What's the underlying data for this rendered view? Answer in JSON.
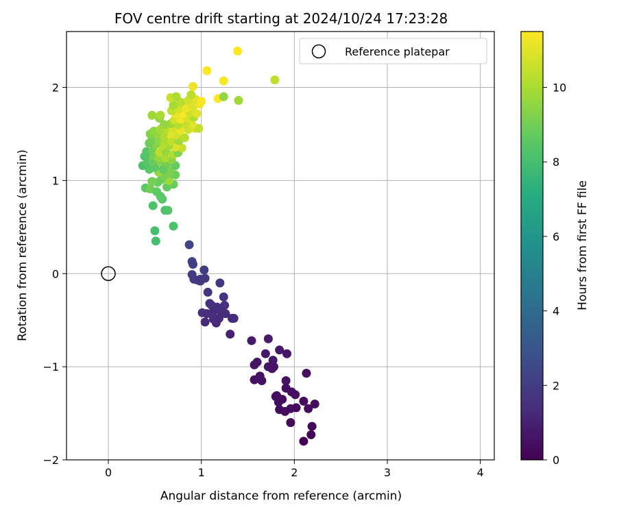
{
  "chart_data": {
    "type": "scatter",
    "title": "FOV centre drift starting at 2024/10/24 17:23:28",
    "xlabel": "Angular distance from reference (arcmin)",
    "ylabel": "Rotation from reference (arcmin)",
    "xlim": [
      -0.45,
      4.15
    ],
    "ylim": [
      -2.0,
      2.6
    ],
    "xticks": [
      0,
      1,
      2,
      3,
      4
    ],
    "yticks": [
      -2,
      -1,
      0,
      1,
      2
    ],
    "grid": true,
    "legend": {
      "position": "top-right",
      "entries": [
        "Reference platepar"
      ]
    },
    "reference_point": {
      "x": 0,
      "y": 0,
      "label": "Reference platepar"
    },
    "colorbar": {
      "label": "Hours from first FF file",
      "range": [
        0,
        11.5
      ],
      "ticks": [
        0,
        2,
        4,
        6,
        8,
        10
      ],
      "colormap": "viridis"
    },
    "points": [
      {
        "x": 2.13,
        "y": -1.07,
        "t": 0.4
      },
      {
        "x": 2.22,
        "y": -1.4,
        "t": 0.3
      },
      {
        "x": 2.19,
        "y": -1.64,
        "t": 0.2
      },
      {
        "x": 2.18,
        "y": -1.73,
        "t": 0.1
      },
      {
        "x": 2.1,
        "y": -1.8,
        "t": 0.05
      },
      {
        "x": 2.15,
        "y": -1.45,
        "t": 0.3
      },
      {
        "x": 2.1,
        "y": -1.37,
        "t": 0.35
      },
      {
        "x": 2.01,
        "y": -1.3,
        "t": 0.4
      },
      {
        "x": 1.97,
        "y": -1.27,
        "t": 0.45
      },
      {
        "x": 1.96,
        "y": -1.45,
        "t": 0.3
      },
      {
        "x": 1.96,
        "y": -1.6,
        "t": 0.2
      },
      {
        "x": 2.02,
        "y": -1.44,
        "t": 0.25
      },
      {
        "x": 1.91,
        "y": -1.15,
        "t": 0.5
      },
      {
        "x": 1.91,
        "y": -1.23,
        "t": 0.45
      },
      {
        "x": 1.87,
        "y": -1.35,
        "t": 0.4
      },
      {
        "x": 1.84,
        "y": -1.46,
        "t": 0.35
      },
      {
        "x": 1.9,
        "y": -1.48,
        "t": 0.3
      },
      {
        "x": 1.83,
        "y": -1.38,
        "t": 0.4
      },
      {
        "x": 1.8,
        "y": -1.32,
        "t": 0.45
      },
      {
        "x": 1.92,
        "y": -0.86,
        "t": 0.7
      },
      {
        "x": 1.84,
        "y": -0.82,
        "t": 0.75
      },
      {
        "x": 1.81,
        "y": -1.31,
        "t": 0.4
      },
      {
        "x": 1.78,
        "y": -1.0,
        "t": 0.6
      },
      {
        "x": 1.77,
        "y": -0.93,
        "t": 0.65
      },
      {
        "x": 1.76,
        "y": -1.02,
        "t": 0.55
      },
      {
        "x": 1.72,
        "y": -1.0,
        "t": 0.6
      },
      {
        "x": 1.72,
        "y": -0.7,
        "t": 0.8
      },
      {
        "x": 1.69,
        "y": -0.86,
        "t": 0.7
      },
      {
        "x": 1.65,
        "y": -1.15,
        "t": 0.5
      },
      {
        "x": 1.63,
        "y": -1.1,
        "t": 0.55
      },
      {
        "x": 1.6,
        "y": -0.95,
        "t": 0.65
      },
      {
        "x": 1.57,
        "y": -1.14,
        "t": 0.5
      },
      {
        "x": 1.57,
        "y": -0.98,
        "t": 0.6
      },
      {
        "x": 1.54,
        "y": -0.72,
        "t": 0.8
      },
      {
        "x": 1.33,
        "y": -0.48,
        "t": 1.3
      },
      {
        "x": 1.31,
        "y": -0.65,
        "t": 1.0
      },
      {
        "x": 1.35,
        "y": -0.48,
        "t": 1.35
      },
      {
        "x": 1.26,
        "y": -0.43,
        "t": 1.4
      },
      {
        "x": 1.25,
        "y": -0.34,
        "t": 1.5
      },
      {
        "x": 1.24,
        "y": -0.25,
        "t": 1.6
      },
      {
        "x": 1.21,
        "y": -0.41,
        "t": 1.45
      },
      {
        "x": 1.19,
        "y": -0.48,
        "t": 1.35
      },
      {
        "x": 1.16,
        "y": -0.53,
        "t": 1.25
      },
      {
        "x": 1.17,
        "y": -0.36,
        "t": 1.5
      },
      {
        "x": 1.13,
        "y": -0.49,
        "t": 1.35
      },
      {
        "x": 1.12,
        "y": -0.42,
        "t": 1.4
      },
      {
        "x": 1.09,
        "y": -0.32,
        "t": 1.55
      },
      {
        "x": 1.11,
        "y": -0.34,
        "t": 1.5
      },
      {
        "x": 1.07,
        "y": -0.2,
        "t": 1.7
      },
      {
        "x": 1.06,
        "y": -0.43,
        "t": 1.4
      },
      {
        "x": 1.04,
        "y": -0.52,
        "t": 1.3
      },
      {
        "x": 1.01,
        "y": -0.42,
        "t": 1.45
      },
      {
        "x": 1.2,
        "y": -0.1,
        "t": 1.8
      },
      {
        "x": 1.04,
        "y": -0.05,
        "t": 1.9
      },
      {
        "x": 1.03,
        "y": 0.04,
        "t": 2.0
      },
      {
        "x": 0.99,
        "y": -0.06,
        "t": 1.9
      },
      {
        "x": 0.96,
        "y": -0.07,
        "t": 1.9
      },
      {
        "x": 0.92,
        "y": -0.06,
        "t": 2.0
      },
      {
        "x": 0.9,
        "y": -0.01,
        "t": 2.0
      },
      {
        "x": 0.9,
        "y": 0.13,
        "t": 2.2
      },
      {
        "x": 0.91,
        "y": 0.1,
        "t": 2.1
      },
      {
        "x": 0.87,
        "y": 0.31,
        "t": 2.4
      },
      {
        "x": 0.99,
        "y": -0.08,
        "t": 1.85
      },
      {
        "x": 0.51,
        "y": 0.35,
        "t": 8.0
      },
      {
        "x": 0.5,
        "y": 0.46,
        "t": 8.0
      },
      {
        "x": 0.7,
        "y": 0.51,
        "t": 8.2
      },
      {
        "x": 0.61,
        "y": 0.68,
        "t": 8.1
      },
      {
        "x": 0.64,
        "y": 0.68,
        "t": 8.3
      },
      {
        "x": 0.48,
        "y": 0.73,
        "t": 8.2
      },
      {
        "x": 0.58,
        "y": 0.8,
        "t": 8.4
      },
      {
        "x": 0.56,
        "y": 0.83,
        "t": 8.5
      },
      {
        "x": 0.4,
        "y": 0.92,
        "t": 8.5
      },
      {
        "x": 0.45,
        "y": 0.91,
        "t": 9.0
      },
      {
        "x": 0.52,
        "y": 0.88,
        "t": 8.6
      },
      {
        "x": 0.63,
        "y": 0.93,
        "t": 8.7
      },
      {
        "x": 0.7,
        "y": 0.96,
        "t": 8.8
      },
      {
        "x": 0.65,
        "y": 1.0,
        "t": 9.8
      },
      {
        "x": 0.57,
        "y": 1.01,
        "t": 8.9
      },
      {
        "x": 0.53,
        "y": 0.98,
        "t": 8.8
      },
      {
        "x": 0.47,
        "y": 0.99,
        "t": 9.0
      },
      {
        "x": 0.6,
        "y": 1.05,
        "t": 9.1
      },
      {
        "x": 0.54,
        "y": 1.09,
        "t": 9.6
      },
      {
        "x": 0.69,
        "y": 1.07,
        "t": 9.0
      },
      {
        "x": 0.72,
        "y": 1.06,
        "t": 8.9
      },
      {
        "x": 0.66,
        "y": 1.1,
        "t": 9.2
      },
      {
        "x": 0.59,
        "y": 1.12,
        "t": 8.7
      },
      {
        "x": 0.5,
        "y": 1.14,
        "t": 8.6
      },
      {
        "x": 0.44,
        "y": 1.12,
        "t": 8.5
      },
      {
        "x": 0.37,
        "y": 1.16,
        "t": 8.2
      },
      {
        "x": 0.42,
        "y": 1.19,
        "t": 8.4
      },
      {
        "x": 0.48,
        "y": 1.2,
        "t": 8.8
      },
      {
        "x": 0.56,
        "y": 1.2,
        "t": 9.3
      },
      {
        "x": 0.63,
        "y": 1.18,
        "t": 9.0
      },
      {
        "x": 0.72,
        "y": 1.16,
        "t": 8.7
      },
      {
        "x": 0.68,
        "y": 1.22,
        "t": 9.4
      },
      {
        "x": 0.61,
        "y": 1.24,
        "t": 10.0
      },
      {
        "x": 0.53,
        "y": 1.25,
        "t": 9.6
      },
      {
        "x": 0.46,
        "y": 1.27,
        "t": 9.1
      },
      {
        "x": 0.39,
        "y": 1.26,
        "t": 8.3
      },
      {
        "x": 0.41,
        "y": 1.31,
        "t": 8.4
      },
      {
        "x": 0.48,
        "y": 1.32,
        "t": 9.0
      },
      {
        "x": 0.55,
        "y": 1.3,
        "t": 10.3
      },
      {
        "x": 0.62,
        "y": 1.31,
        "t": 9.7
      },
      {
        "x": 0.7,
        "y": 1.28,
        "t": 10.1
      },
      {
        "x": 0.75,
        "y": 1.3,
        "t": 9.3
      },
      {
        "x": 0.79,
        "y": 1.35,
        "t": 10.5
      },
      {
        "x": 0.72,
        "y": 1.36,
        "t": 10.9
      },
      {
        "x": 0.65,
        "y": 1.37,
        "t": 9.9
      },
      {
        "x": 0.58,
        "y": 1.38,
        "t": 10.2
      },
      {
        "x": 0.51,
        "y": 1.39,
        "t": 9.4
      },
      {
        "x": 0.44,
        "y": 1.4,
        "t": 8.9
      },
      {
        "x": 0.47,
        "y": 1.44,
        "t": 9.0
      },
      {
        "x": 0.54,
        "y": 1.45,
        "t": 9.5
      },
      {
        "x": 0.61,
        "y": 1.44,
        "t": 10.0
      },
      {
        "x": 0.68,
        "y": 1.42,
        "t": 10.4
      },
      {
        "x": 0.76,
        "y": 1.43,
        "t": 9.8
      },
      {
        "x": 0.82,
        "y": 1.46,
        "t": 10.3
      },
      {
        "x": 0.73,
        "y": 1.49,
        "t": 10.7
      },
      {
        "x": 0.66,
        "y": 1.5,
        "t": 11.0
      },
      {
        "x": 0.59,
        "y": 1.5,
        "t": 10.1
      },
      {
        "x": 0.52,
        "y": 1.51,
        "t": 9.7
      },
      {
        "x": 0.45,
        "y": 1.5,
        "t": 9.3
      },
      {
        "x": 0.49,
        "y": 1.53,
        "t": 9.5
      },
      {
        "x": 0.56,
        "y": 1.55,
        "t": 9.9
      },
      {
        "x": 0.63,
        "y": 1.56,
        "t": 10.3
      },
      {
        "x": 0.7,
        "y": 1.55,
        "t": 10.8
      },
      {
        "x": 0.78,
        "y": 1.54,
        "t": 11.2
      },
      {
        "x": 0.86,
        "y": 1.55,
        "t": 10.6
      },
      {
        "x": 0.93,
        "y": 1.56,
        "t": 10.9
      },
      {
        "x": 0.97,
        "y": 1.56,
        "t": 10.4
      },
      {
        "x": 0.9,
        "y": 1.6,
        "t": 11.0
      },
      {
        "x": 0.83,
        "y": 1.61,
        "t": 10.5
      },
      {
        "x": 0.75,
        "y": 1.6,
        "t": 10.2
      },
      {
        "x": 0.67,
        "y": 1.61,
        "t": 9.8
      },
      {
        "x": 0.6,
        "y": 1.6,
        "t": 9.6
      },
      {
        "x": 0.71,
        "y": 1.65,
        "t": 10.7
      },
      {
        "x": 0.78,
        "y": 1.66,
        "t": 11.3
      },
      {
        "x": 0.85,
        "y": 1.67,
        "t": 10.8
      },
      {
        "x": 0.92,
        "y": 1.68,
        "t": 10.1
      },
      {
        "x": 0.55,
        "y": 1.67,
        "t": 9.5
      },
      {
        "x": 0.47,
        "y": 1.7,
        "t": 9.8
      },
      {
        "x": 0.56,
        "y": 1.7,
        "t": 10.0
      },
      {
        "x": 0.73,
        "y": 1.71,
        "t": 11.1
      },
      {
        "x": 0.81,
        "y": 1.72,
        "t": 11.4
      },
      {
        "x": 0.88,
        "y": 1.73,
        "t": 10.6
      },
      {
        "x": 0.95,
        "y": 1.72,
        "t": 11.0
      },
      {
        "x": 0.68,
        "y": 1.75,
        "t": 10.4
      },
      {
        "x": 0.76,
        "y": 1.77,
        "t": 10.8
      },
      {
        "x": 0.84,
        "y": 1.78,
        "t": 11.2
      },
      {
        "x": 0.91,
        "y": 1.8,
        "t": 10.9
      },
      {
        "x": 0.98,
        "y": 1.82,
        "t": 11.3
      },
      {
        "x": 0.7,
        "y": 1.81,
        "t": 9.9
      },
      {
        "x": 0.78,
        "y": 1.84,
        "t": 10.3
      },
      {
        "x": 0.86,
        "y": 1.86,
        "t": 10.7
      },
      {
        "x": 0.94,
        "y": 1.87,
        "t": 11.0
      },
      {
        "x": 1.0,
        "y": 1.85,
        "t": 11.4
      },
      {
        "x": 0.67,
        "y": 1.89,
        "t": 10.6
      },
      {
        "x": 0.73,
        "y": 1.9,
        "t": 10.1
      },
      {
        "x": 0.89,
        "y": 1.92,
        "t": 10.3
      },
      {
        "x": 1.18,
        "y": 1.88,
        "t": 11.5
      },
      {
        "x": 1.24,
        "y": 1.9,
        "t": 9.6
      },
      {
        "x": 1.4,
        "y": 1.86,
        "t": 9.8
      },
      {
        "x": 0.91,
        "y": 2.01,
        "t": 11.2
      },
      {
        "x": 1.24,
        "y": 2.07,
        "t": 11.4
      },
      {
        "x": 1.79,
        "y": 2.08,
        "t": 10.4
      },
      {
        "x": 1.06,
        "y": 2.18,
        "t": 11.5
      },
      {
        "x": 1.39,
        "y": 2.39,
        "t": 11.5
      }
    ]
  }
}
